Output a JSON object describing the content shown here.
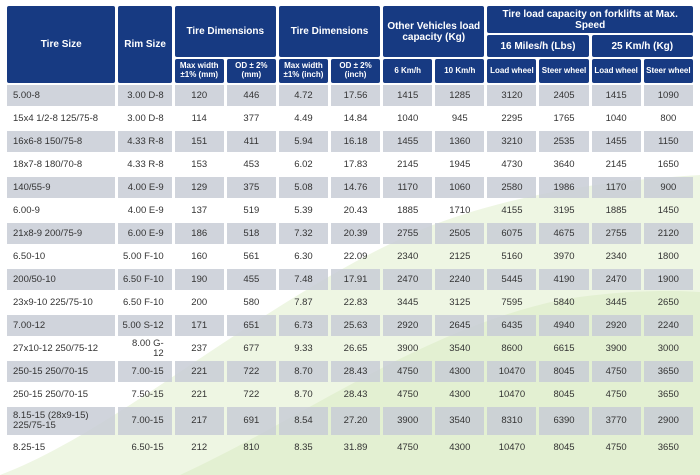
{
  "headers": {
    "tire_size": "Tire Size",
    "rim_size": "Rim Size",
    "tire_dims_mm": "Tire Dimensions",
    "tire_dims_inch": "Tire Dimensions",
    "other_vehicles": "Other Vehicles load capacity (Kg)",
    "forklift_capacity": "Tire load capacity on forklifts at Max. Speed",
    "speed_16": "16 Miles/h (Lbs)",
    "speed_25": "25 Km/h (Kg)",
    "max_width_mm": "Max width ±1% (mm)",
    "od_mm": "OD ± 2% (mm)",
    "max_width_inch": "Max width ±1% (inch)",
    "od_inch": "OD ± 2% (inch)",
    "kmh_6": "6 Km/h",
    "kmh_10": "10 Km/h",
    "load_wheel_1": "Load wheel",
    "steer_wheel_1": "Steer wheel",
    "load_wheel_2": "Load wheel",
    "steer_wheel_2": "Steer wheel"
  },
  "rows": [
    {
      "size": "5.00-8",
      "rim": "3.00 D-8",
      "w_mm": "120",
      "od_mm": "446",
      "w_in": "4.72",
      "od_in": "17.56",
      "k6": "1415",
      "k10": "1285",
      "lw16": "3120",
      "sw16": "2405",
      "lw25": "1415",
      "sw25": "1090"
    },
    {
      "size": "15x4 1/2-8 125/75-8",
      "rim": "3.00 D-8",
      "w_mm": "114",
      "od_mm": "377",
      "w_in": "4.49",
      "od_in": "14.84",
      "k6": "1040",
      "k10": "945",
      "lw16": "2295",
      "sw16": "1765",
      "lw25": "1040",
      "sw25": "800"
    },
    {
      "size": "16x6-8 150/75-8",
      "rim": "4.33 R-8",
      "w_mm": "151",
      "od_mm": "411",
      "w_in": "5.94",
      "od_in": "16.18",
      "k6": "1455",
      "k10": "1360",
      "lw16": "3210",
      "sw16": "2535",
      "lw25": "1455",
      "sw25": "1150"
    },
    {
      "size": "18x7-8 180/70-8",
      "rim": "4.33 R-8",
      "w_mm": "153",
      "od_mm": "453",
      "w_in": "6.02",
      "od_in": "17.83",
      "k6": "2145",
      "k10": "1945",
      "lw16": "4730",
      "sw16": "3640",
      "lw25": "2145",
      "sw25": "1650"
    },
    {
      "size": "140/55-9",
      "rim": "4.00 E-9",
      "w_mm": "129",
      "od_mm": "375",
      "w_in": "5.08",
      "od_in": "14.76",
      "k6": "1170",
      "k10": "1060",
      "lw16": "2580",
      "sw16": "1986",
      "lw25": "1170",
      "sw25": "900"
    },
    {
      "size": "6.00-9",
      "rim": "4.00 E-9",
      "w_mm": "137",
      "od_mm": "519",
      "w_in": "5.39",
      "od_in": "20.43",
      "k6": "1885",
      "k10": "1710",
      "lw16": "4155",
      "sw16": "3195",
      "lw25": "1885",
      "sw25": "1450"
    },
    {
      "size": "21x8-9 200/75-9",
      "rim": "6.00 E-9",
      "w_mm": "186",
      "od_mm": "518",
      "w_in": "7.32",
      "od_in": "20.39",
      "k6": "2755",
      "k10": "2505",
      "lw16": "6075",
      "sw16": "4675",
      "lw25": "2755",
      "sw25": "2120"
    },
    {
      "size": "6.50-10",
      "rim": "5.00 F-10",
      "w_mm": "160",
      "od_mm": "561",
      "w_in": "6.30",
      "od_in": "22.09",
      "k6": "2340",
      "k10": "2125",
      "lw16": "5160",
      "sw16": "3970",
      "lw25": "2340",
      "sw25": "1800"
    },
    {
      "size": "200/50-10",
      "rim": "6.50 F-10",
      "w_mm": "190",
      "od_mm": "455",
      "w_in": "7.48",
      "od_in": "17.91",
      "k6": "2470",
      "k10": "2240",
      "lw16": "5445",
      "sw16": "4190",
      "lw25": "2470",
      "sw25": "1900"
    },
    {
      "size": "23x9-10 225/75-10",
      "rim": "6.50 F-10",
      "w_mm": "200",
      "od_mm": "580",
      "w_in": "7.87",
      "od_in": "22.83",
      "k6": "3445",
      "k10": "3125",
      "lw16": "7595",
      "sw16": "5840",
      "lw25": "3445",
      "sw25": "2650"
    },
    {
      "size": "7.00-12",
      "rim": "5.00 S-12",
      "w_mm": "171",
      "od_mm": "651",
      "w_in": "6.73",
      "od_in": "25.63",
      "k6": "2920",
      "k10": "2645",
      "lw16": "6435",
      "sw16": "4940",
      "lw25": "2920",
      "sw25": "2240"
    },
    {
      "size": "27x10-12 250/75-12",
      "rim": "8.00 G-12",
      "w_mm": "237",
      "od_mm": "677",
      "w_in": "9.33",
      "od_in": "26.65",
      "k6": "3900",
      "k10": "3540",
      "lw16": "8600",
      "sw16": "6615",
      "lw25": "3900",
      "sw25": "3000"
    },
    {
      "size": "250-15 250/70-15",
      "rim": "7.00-15",
      "w_mm": "221",
      "od_mm": "722",
      "w_in": "8.70",
      "od_in": "28.43",
      "k6": "4750",
      "k10": "4300",
      "lw16": "10470",
      "sw16": "8045",
      "lw25": "4750",
      "sw25": "3650"
    },
    {
      "size": "250-15 250/70-15",
      "rim": "7.50-15",
      "w_mm": "221",
      "od_mm": "722",
      "w_in": "8.70",
      "od_in": "28.43",
      "k6": "4750",
      "k10": "4300",
      "lw16": "10470",
      "sw16": "8045",
      "lw25": "4750",
      "sw25": "3650"
    },
    {
      "size": "8.15-15 (28x9-15) 225/75-15",
      "rim": "7.00-15",
      "w_mm": "217",
      "od_mm": "691",
      "w_in": "8.54",
      "od_in": "27.20",
      "k6": "3900",
      "k10": "3540",
      "lw16": "8310",
      "sw16": "6390",
      "lw25": "3770",
      "sw25": "2900"
    },
    {
      "size": "8.25-15",
      "rim": "6.50-15",
      "w_mm": "212",
      "od_mm": "810",
      "w_in": "8.35",
      "od_in": "31.89",
      "k6": "4750",
      "k10": "4300",
      "lw16": "10470",
      "sw16": "8045",
      "lw25": "4750",
      "sw25": "3650"
    }
  ],
  "colors": {
    "header_bg": "#173a82",
    "row_shade": "#c8ccd6",
    "text": "#333333"
  }
}
